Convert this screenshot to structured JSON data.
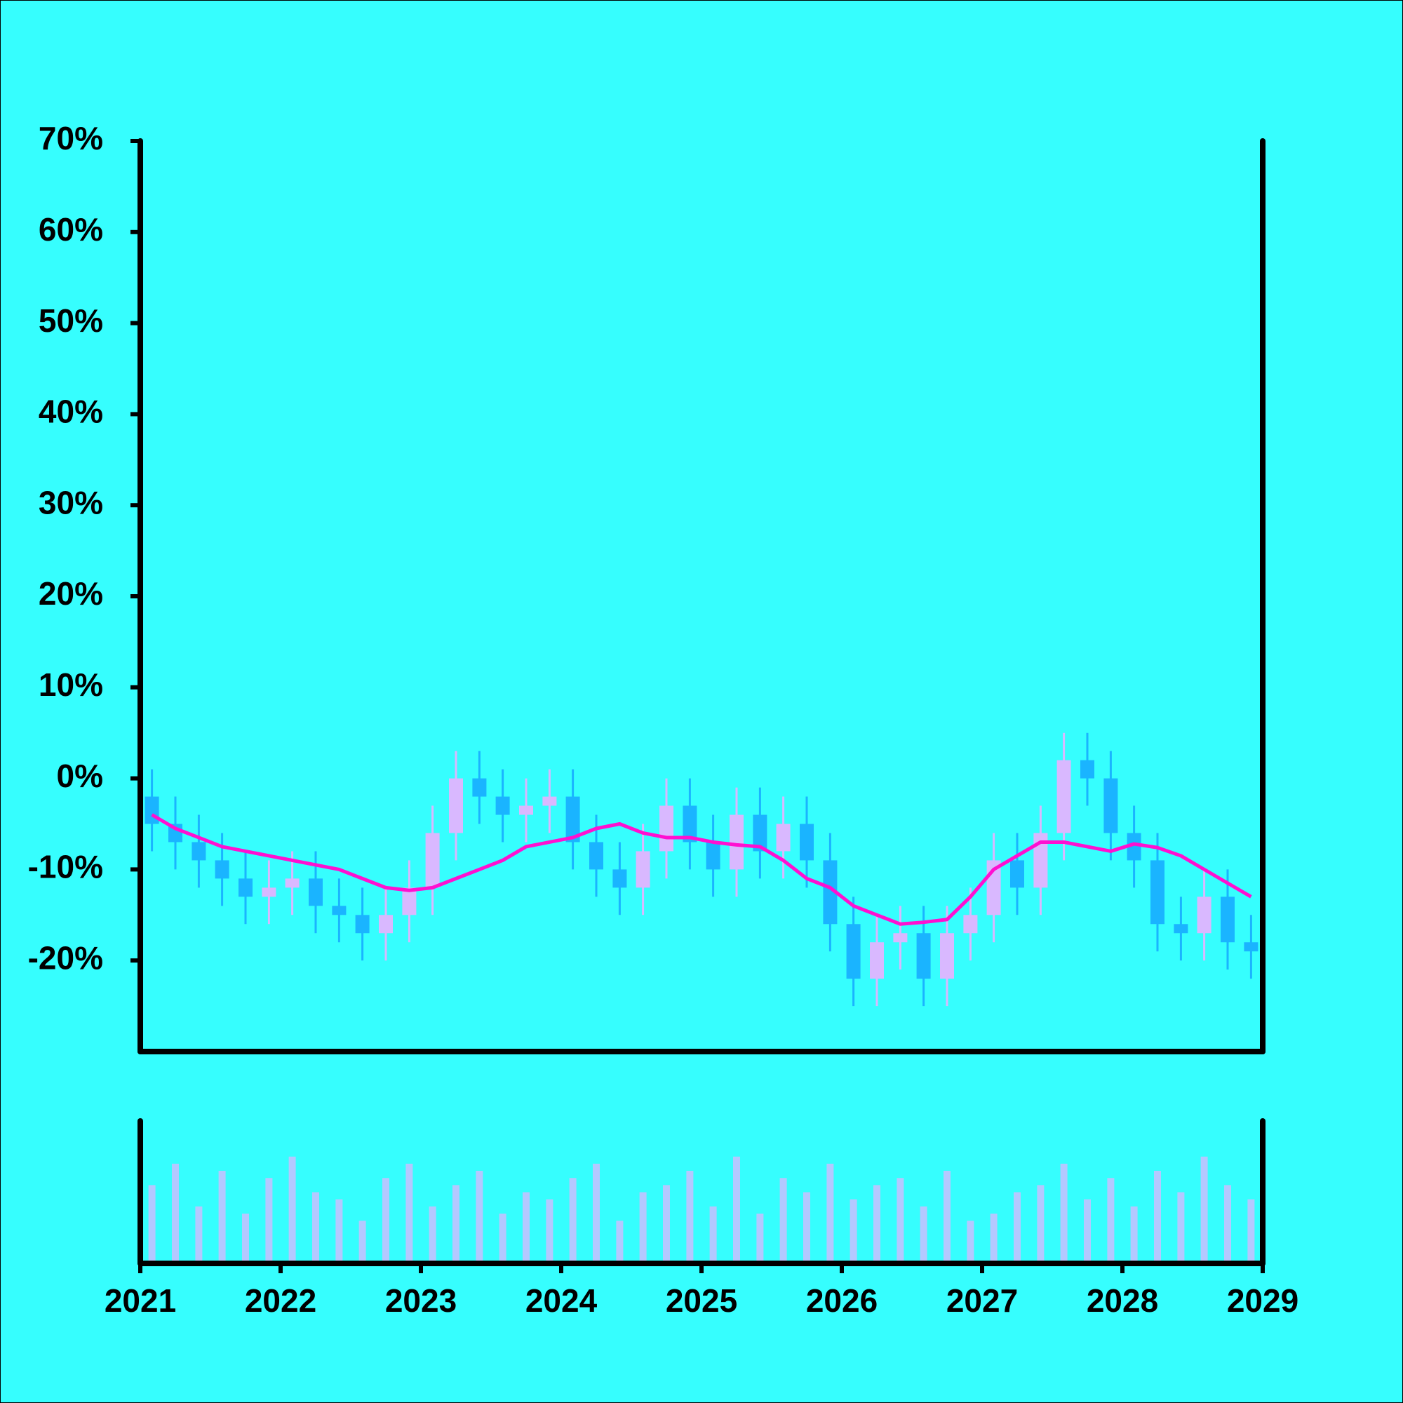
{
  "chart_data": {
    "type": "candlestick",
    "x": [
      2021.083,
      2021.25,
      2021.417,
      2021.583,
      2021.75,
      2021.917,
      2022.083,
      2022.25,
      2022.417,
      2022.583,
      2022.75,
      2022.917,
      2023.083,
      2023.25,
      2023.417,
      2023.583,
      2023.75,
      2023.917,
      2024.083,
      2024.25,
      2024.417,
      2024.583,
      2024.75,
      2024.917,
      2025.083,
      2025.25,
      2025.417,
      2025.583,
      2025.75,
      2025.917,
      2026.083,
      2026.25,
      2026.417,
      2026.583,
      2026.75,
      2026.917,
      2027.083,
      2027.25,
      2027.417,
      2027.583,
      2027.75,
      2027.917,
      2028.083,
      2028.25,
      2028.417,
      2028.583,
      2028.75,
      2028.917
    ],
    "open": [
      -2,
      -5,
      -7,
      -9,
      -11,
      -13,
      -12,
      -11,
      -14,
      -15,
      -17,
      -15,
      -12,
      -6,
      0,
      -2,
      -4,
      -3,
      -2,
      -7,
      -10,
      -12,
      -8,
      -3,
      -7,
      -10,
      -4,
      -8,
      -5,
      -9,
      -16,
      -22,
      -18,
      -17,
      -22,
      -17,
      -15,
      -9,
      -12,
      -6,
      2,
      0,
      -6,
      -9,
      -16,
      -17,
      -13,
      -18
    ],
    "high": [
      1,
      -2,
      -4,
      -6,
      -8,
      -9,
      -8,
      -8,
      -11,
      -12,
      -12,
      -9,
      -3,
      3,
      3,
      1,
      0,
      1,
      1,
      -4,
      -7,
      -5,
      0,
      0,
      -4,
      -1,
      -1,
      -2,
      -2,
      -6,
      -13,
      -15,
      -14,
      -14,
      -14,
      -12,
      -6,
      -6,
      -3,
      5,
      5,
      3,
      -3,
      -6,
      -13,
      -10,
      -10,
      -15
    ],
    "low": [
      -8,
      -10,
      -12,
      -14,
      -16,
      -16,
      -15,
      -17,
      -18,
      -20,
      -20,
      -18,
      -15,
      -9,
      -5,
      -7,
      -7,
      -6,
      -10,
      -13,
      -15,
      -15,
      -11,
      -10,
      -13,
      -13,
      -11,
      -11,
      -12,
      -19,
      -25,
      -25,
      -21,
      -25,
      -25,
      -20,
      -18,
      -15,
      -15,
      -9,
      -3,
      -9,
      -12,
      -19,
      -20,
      -20,
      -21,
      -22
    ],
    "close": [
      -5,
      -7,
      -9,
      -11,
      -13,
      -12,
      -11,
      -14,
      -15,
      -17,
      -15,
      -12,
      -6,
      0,
      -2,
      -4,
      -3,
      -2,
      -7,
      -10,
      -12,
      -8,
      -3,
      -7,
      -10,
      -4,
      -8,
      -5,
      -9,
      -16,
      -22,
      -18,
      -17,
      -22,
      -17,
      -15,
      -9,
      -12,
      -6,
      2,
      0,
      -6,
      -9,
      -16,
      -17,
      -13,
      -18,
      -19
    ],
    "up_color": "#d9b8ff",
    "down_color": "#1ab4ff",
    "moving_average": {
      "color": "#ff10d0",
      "values": [
        -4,
        -5.5,
        -6.5,
        -7.5,
        -8,
        -8.5,
        -9,
        -9.5,
        -10,
        -11,
        -12,
        -12.3,
        -12,
        -11,
        -10,
        -9,
        -7.5,
        -7,
        -6.5,
        -5.5,
        -5,
        -6,
        -6.5,
        -6.5,
        -7,
        -7.3,
        -7.5,
        -9,
        -11,
        -12,
        -14,
        -15,
        -16,
        -15.8,
        -15.5,
        -13,
        -10,
        -8.5,
        -7,
        -7,
        -7.5,
        -8,
        -7.2,
        -7.6,
        -8.5,
        -10,
        -11.5,
        -13
      ]
    },
    "volume": {
      "color": "#b4c8ff",
      "values": [
        55,
        70,
        40,
        65,
        35,
        60,
        75,
        50,
        45,
        30,
        60,
        70,
        40,
        55,
        65,
        35,
        50,
        45,
        60,
        70,
        30,
        50,
        55,
        65,
        40,
        75,
        35,
        60,
        50,
        70,
        45,
        55,
        60,
        40,
        65,
        30,
        35,
        50,
        55,
        70,
        45,
        60,
        40,
        65,
        50,
        75,
        55,
        45
      ]
    },
    "xlim": [
      2021,
      2029
    ],
    "xticks": [
      2021,
      2022,
      2023,
      2024,
      2025,
      2026,
      2027,
      2028,
      2029
    ],
    "ylim": [
      -30,
      70
    ],
    "yticks": [
      {
        "value": 70,
        "label": "70%"
      },
      {
        "value": 60,
        "label": "60%"
      },
      {
        "value": 50,
        "label": "50%"
      },
      {
        "value": 40,
        "label": "40%"
      },
      {
        "value": 30,
        "label": "30%"
      },
      {
        "value": 20,
        "label": "20%"
      },
      {
        "value": 10,
        "label": "10%"
      },
      {
        "value": 0,
        "label": "0%"
      },
      {
        "value": -10,
        "label": "-10%"
      },
      {
        "value": -20,
        "label": "-20%"
      }
    ],
    "y2lim": [
      0,
      100
    ]
  }
}
